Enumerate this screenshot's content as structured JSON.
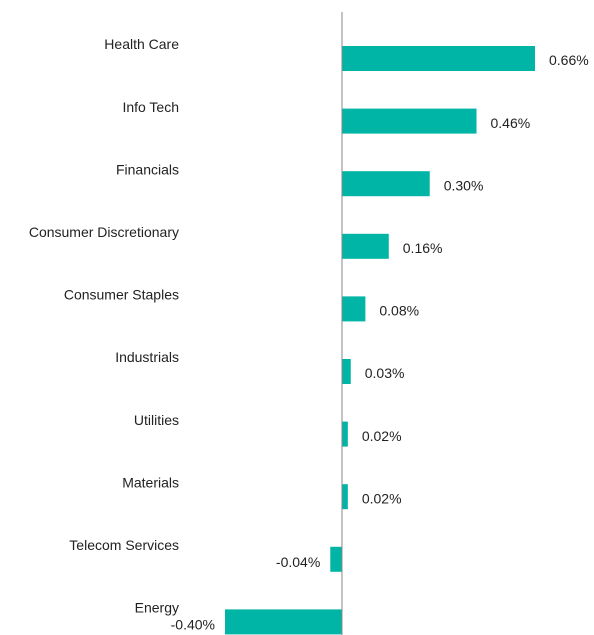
{
  "chart_data": {
    "type": "barh",
    "categories": [
      "Health Care",
      "Info Tech",
      "Financials",
      "Consumer Discretionary",
      "Consumer Staples",
      "Industrials",
      "Utilities",
      "Materials",
      "Telecom Services",
      "Energy"
    ],
    "values": [
      0.66,
      0.46,
      0.3,
      0.16,
      0.08,
      0.03,
      0.02,
      0.02,
      -0.04,
      -0.4
    ],
    "value_labels": [
      "0.66%",
      "0.46%",
      "0.30%",
      "0.16%",
      "0.08%",
      "0.03%",
      "0.02%",
      "0.02%",
      "-0.04%",
      "-0.40%"
    ],
    "color": "#00b5a6",
    "xlim": [
      -0.4,
      0.66
    ]
  }
}
